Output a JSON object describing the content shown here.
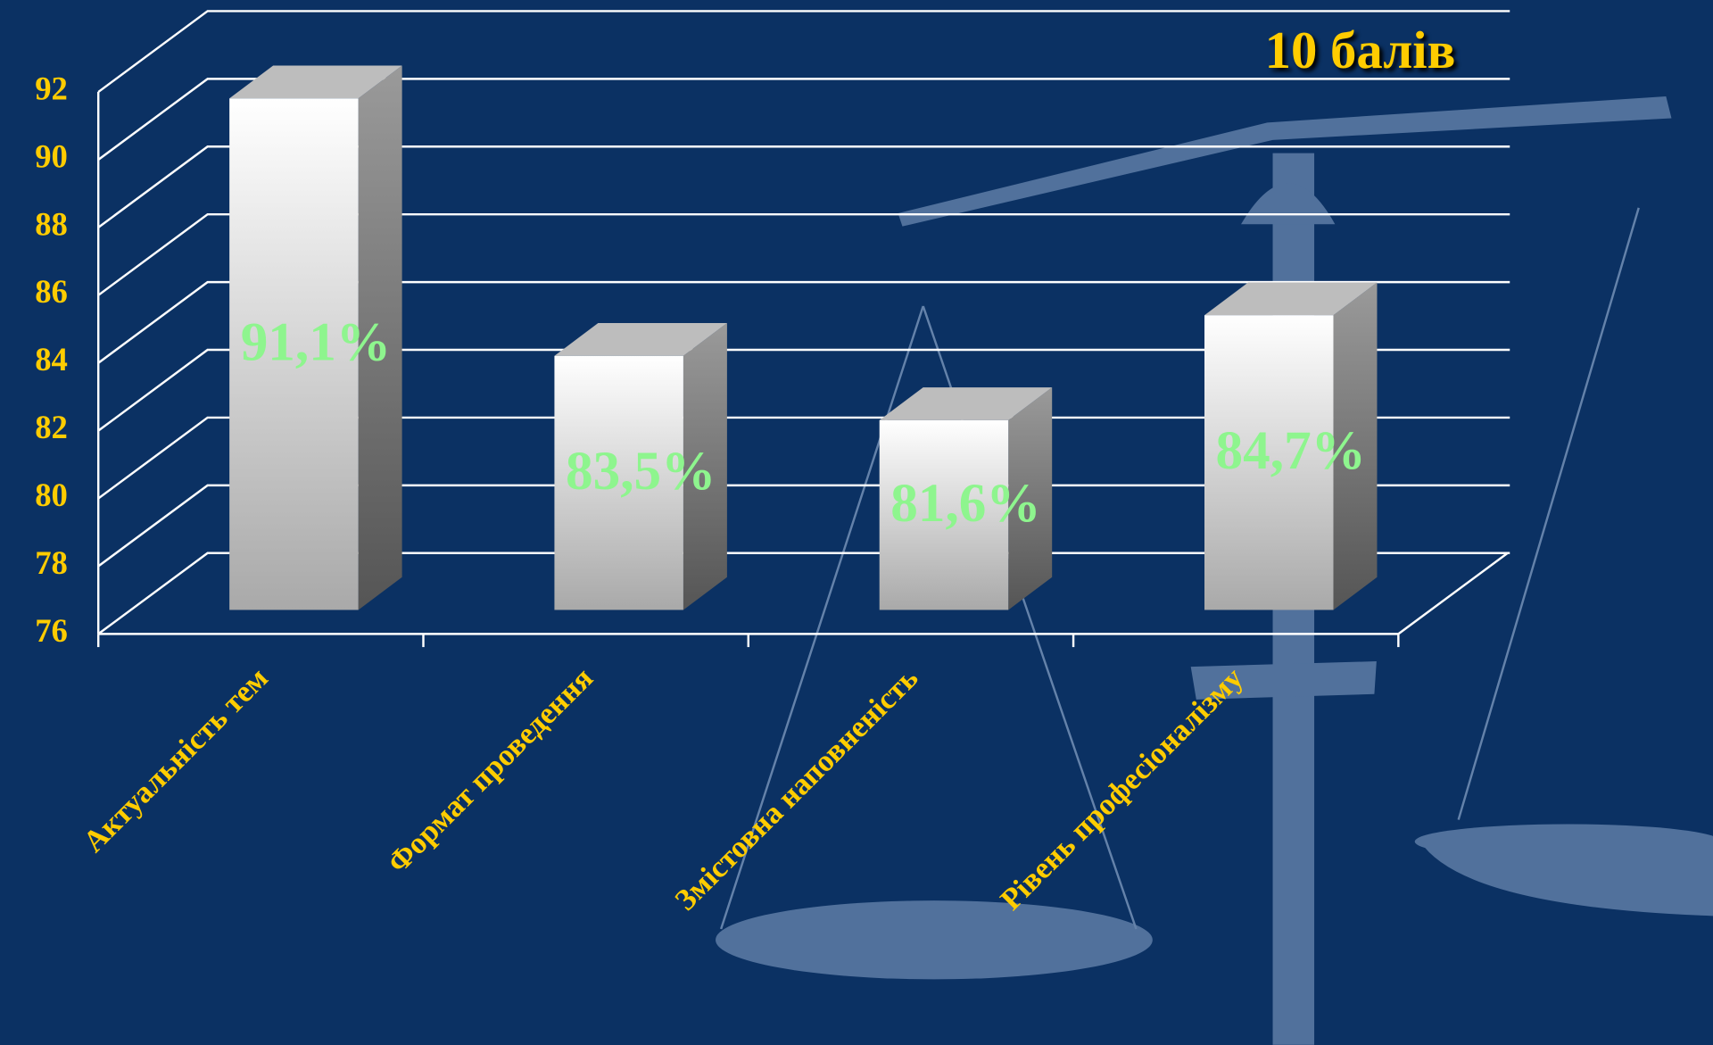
{
  "chart_data": {
    "type": "bar",
    "title": "10 балів",
    "categories": [
      "Актуальність тем",
      "Формат проведення",
      "Змістовна наповненість",
      "Рівень професіоналізму"
    ],
    "values": [
      91.1,
      83.5,
      81.6,
      84.7
    ],
    "value_labels": [
      "91,1%",
      "83,5%",
      "81,6%",
      "84,7%"
    ],
    "ylim": [
      76,
      92
    ],
    "yticks": [
      76,
      78,
      80,
      82,
      84,
      86,
      88,
      90,
      92
    ],
    "grid": true
  }
}
